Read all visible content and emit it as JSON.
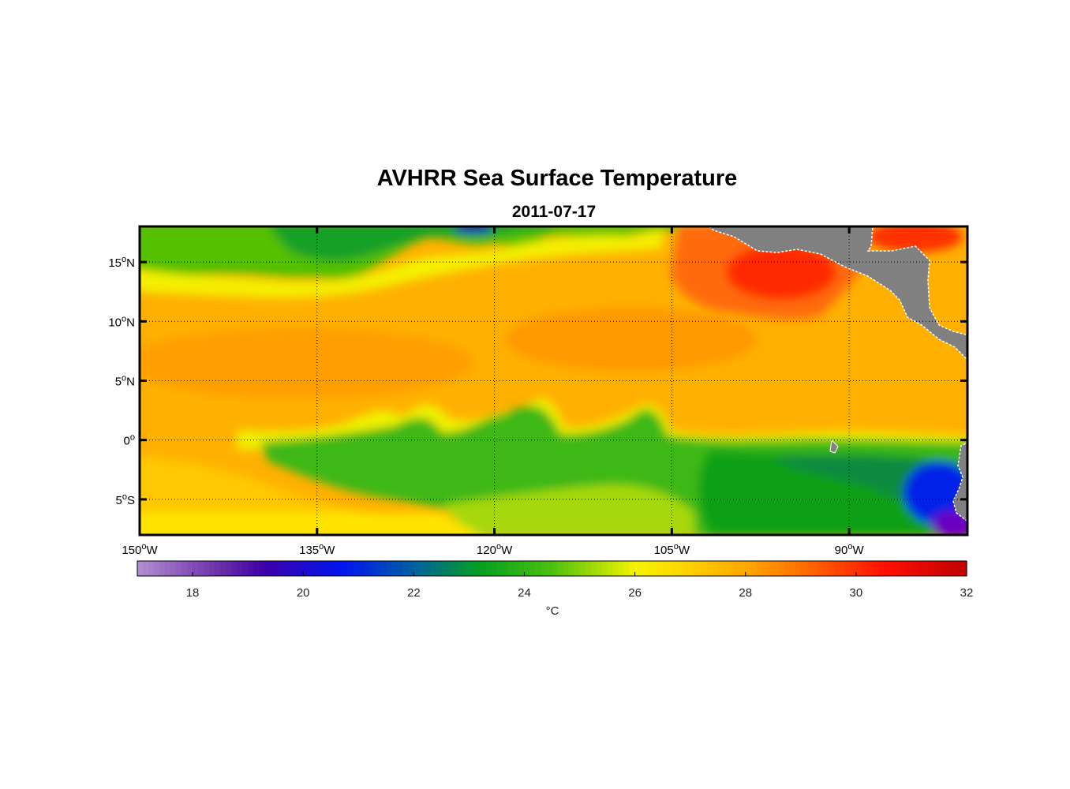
{
  "figure": {
    "title": "AVHRR Sea Surface Temperature",
    "subtitle": "2011-07-17"
  },
  "map": {
    "lon_range": [
      -150,
      -80
    ],
    "lat_range": [
      -8,
      18
    ],
    "grid": "dotted",
    "lon_ticks": [
      {
        "value": -150,
        "label": "150",
        "sup": "o",
        "hemi": "W"
      },
      {
        "value": -135,
        "label": "135",
        "sup": "o",
        "hemi": "W"
      },
      {
        "value": -120,
        "label": "120",
        "sup": "o",
        "hemi": "W"
      },
      {
        "value": -105,
        "label": "105",
        "sup": "o",
        "hemi": "W"
      },
      {
        "value": -90,
        "label": "90",
        "sup": "o",
        "hemi": "W"
      }
    ],
    "lat_ticks": [
      {
        "value": 15,
        "label": "15",
        "sup": "o",
        "hemi": "N"
      },
      {
        "value": 10,
        "label": "10",
        "sup": "o",
        "hemi": "N"
      },
      {
        "value": 5,
        "label": "5",
        "sup": "o",
        "hemi": "N"
      },
      {
        "value": 0,
        "label": "0",
        "sup": "o",
        "hemi": ""
      },
      {
        "value": -5,
        "label": "5",
        "sup": "o",
        "hemi": "S"
      }
    ],
    "land_color": "#808080",
    "coast_color": "#ffffff"
  },
  "colorbar": {
    "range": [
      17,
      32
    ],
    "ticks": [
      18,
      20,
      22,
      24,
      26,
      28,
      30,
      32
    ],
    "unit": "°C",
    "colors": [
      "#b38ed1",
      "#6a2fa8",
      "#3d00a8",
      "#0014f0",
      "#0060a0",
      "#06a020",
      "#4cc010",
      "#f4f400",
      "#ffd000",
      "#ffa800",
      "#ff7000",
      "#ff1000",
      "#c00000"
    ],
    "color_stops": [
      17,
      18.5,
      19.3,
      20.7,
      22,
      23.2,
      24.5,
      26,
      27,
      28,
      29,
      30.5,
      32
    ]
  }
}
